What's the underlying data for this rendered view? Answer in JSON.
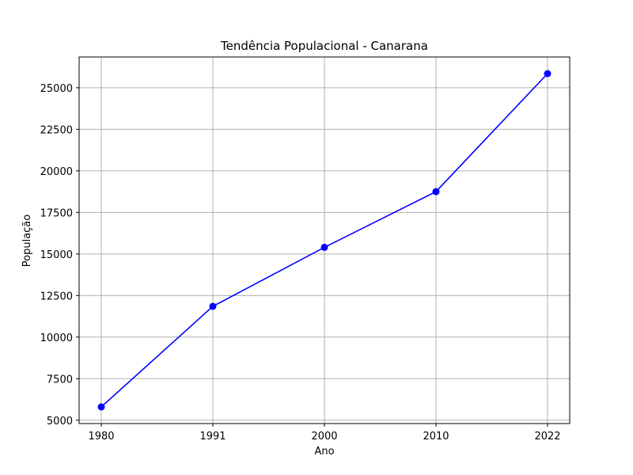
{
  "chart_data": {
    "type": "line",
    "title": "Tendência Populacional - Canarana",
    "xlabel": "Ano",
    "ylabel": "População",
    "categories": [
      "1980",
      "1991",
      "2000",
      "2010",
      "2022"
    ],
    "series": [
      {
        "values": [
          5800,
          11850,
          15400,
          18750,
          25850
        ],
        "color": "#0000ff",
        "marker": "circle"
      }
    ],
    "yticks": [
      "5000",
      "7500",
      "10000",
      "12500",
      "15000",
      "17500",
      "20000",
      "22500",
      "25000"
    ],
    "ylim": [
      4800,
      26850
    ],
    "grid": true,
    "legend": "none"
  }
}
